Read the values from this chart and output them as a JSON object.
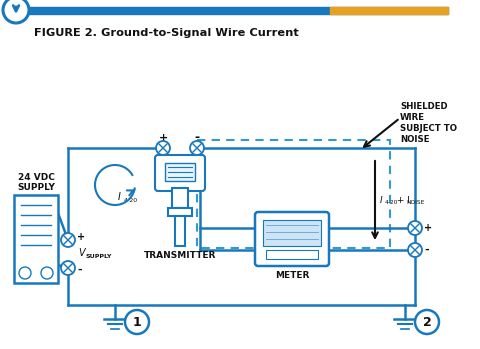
{
  "title": "FIGURE 2. Ground-to-Signal Wire Current",
  "bg_color": "#ffffff",
  "blue": "#1878be",
  "orange": "#e8a020",
  "header_blue": "#1878be",
  "dashed_blue": "#3399cc",
  "blk": "#111111",
  "supply_label": "24 VDC\nSUPPLY",
  "transmitter_label": "TRANSMITTER",
  "meter_label": "METER",
  "shielded_label": "SHIELDED\nWIRE\nSUBJECT TO\nNOISE",
  "ground1_label": "1",
  "ground2_label": "2"
}
